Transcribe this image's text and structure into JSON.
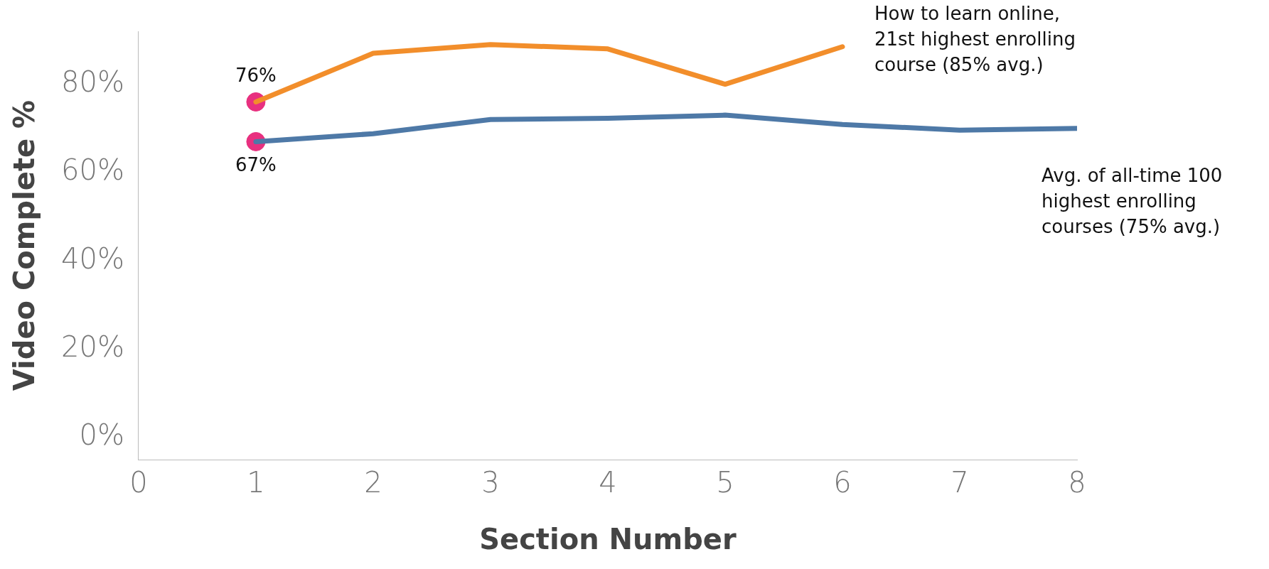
{
  "chart_data": {
    "type": "line",
    "xlabel": "Section Number",
    "ylabel": "Video Complete %",
    "xlim": [
      0,
      8
    ],
    "xticks": [
      0,
      1,
      2,
      3,
      4,
      5,
      6,
      7,
      8
    ],
    "ylim": [
      -5,
      92
    ],
    "yticks": [
      {
        "value": 0,
        "label": "0%"
      },
      {
        "value": 20,
        "label": "20%"
      },
      {
        "value": 40,
        "label": "40%"
      },
      {
        "value": 60,
        "label": "60%"
      },
      {
        "value": 80,
        "label": "80%"
      }
    ],
    "grid": false,
    "legend": false,
    "marker": "none",
    "line_style": "solid",
    "series": [
      {
        "name": "How to learn online, 21st highest enrolling course (85% avg.)",
        "color": "#f28e2b",
        "x": [
          1,
          2,
          3,
          4,
          5,
          6
        ],
        "values": [
          76,
          87,
          89,
          88,
          80,
          88.5
        ]
      },
      {
        "name": "Avg. of all-time 100 highest enrolling courses (75% avg.)",
        "color": "#4e79a7",
        "x": [
          1,
          2,
          3,
          4,
          5,
          6,
          7,
          8
        ],
        "values": [
          67,
          68.8,
          72,
          72.3,
          73,
          70.9,
          69.6,
          70
        ]
      },
      {
        "type": "scatter",
        "marker": "circle",
        "color": "#e8307f",
        "x": [
          1,
          1
        ],
        "values": [
          76,
          67
        ],
        "value_labels": [
          "76%",
          "67%"
        ]
      }
    ]
  }
}
